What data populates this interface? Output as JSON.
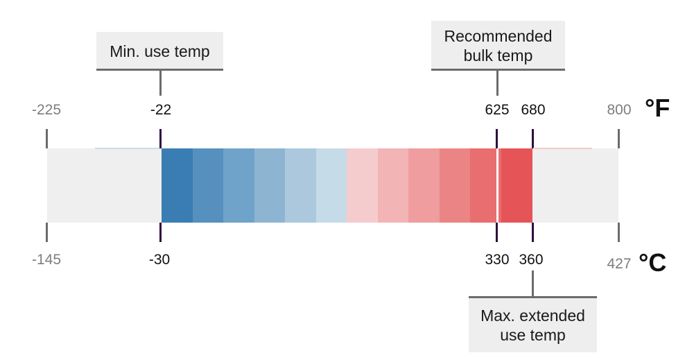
{
  "callouts": {
    "min_use": "Min. use temp",
    "recommended_bulk": "Recommended\nbulk temp",
    "max_extended": "Max. extended\nuse temp"
  },
  "fahrenheit": {
    "unit": "°F",
    "min": "-225",
    "min_use": "-22",
    "recommended": "625",
    "max_extended": "680",
    "max": "800"
  },
  "celsius": {
    "unit": "°C",
    "min": "-145",
    "min_use": "-30",
    "recommended": "330",
    "max_extended": "360",
    "max": "427"
  },
  "colors": {
    "background_gray": "#efefef",
    "gradient": [
      "#3a7db3",
      "#5590bf",
      "#70a3c9",
      "#8db5d2",
      "#abc8dd",
      "#c6dbe8",
      "#f5cccd",
      "#f3b4b6",
      "#ef9d9f",
      "#eb8585",
      "#e86e6f",
      "#e55457"
    ],
    "marker_tick": "#2d0b3e"
  }
}
